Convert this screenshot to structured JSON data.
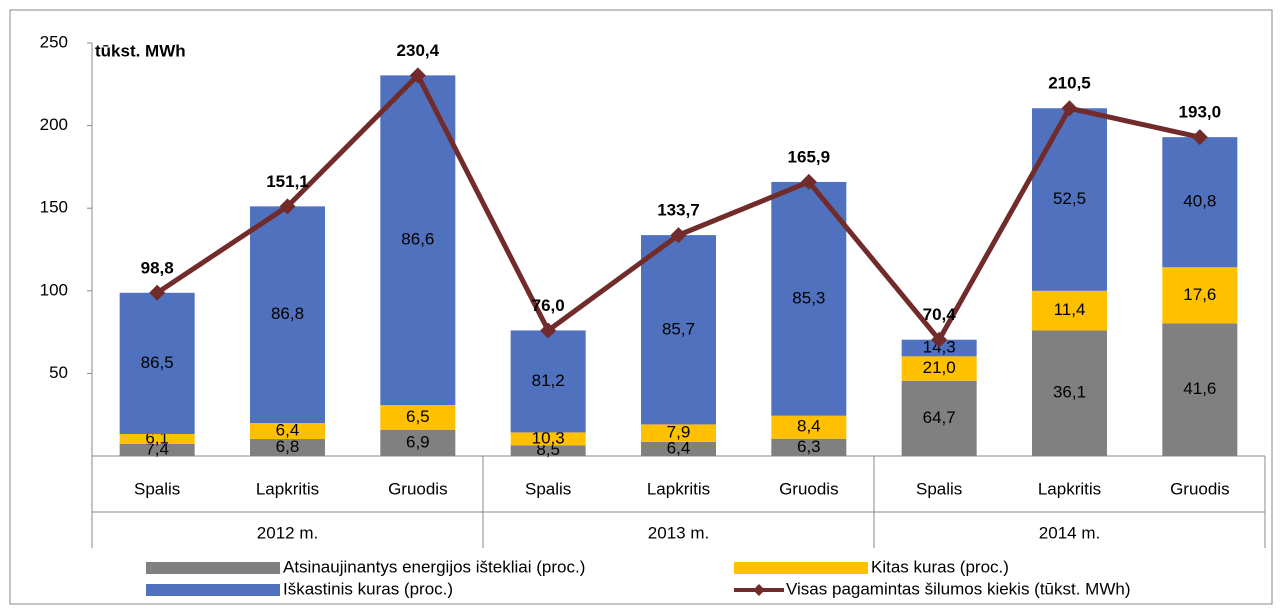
{
  "chart_data": {
    "type": "stacked-bar-line",
    "y_unit_label": "tūkst. MWh",
    "categories": [
      "Spalis",
      "Lapkritis",
      "Gruodis",
      "Spalis",
      "Lapkritis",
      "Gruodis",
      "Spalis",
      "Lapkritis",
      "Gruodis"
    ],
    "groups": [
      "2012 m.",
      "2013 m.",
      "2014 m."
    ],
    "series": [
      {
        "name": "Atsinaujinantys energijos ištekliai (proc.)",
        "color": "#808080",
        "values": [
          7.4,
          6.8,
          6.9,
          8.5,
          6.4,
          6.3,
          64.7,
          36.1,
          41.6
        ],
        "value_labels": [
          "7,4",
          "6,8",
          "6,9",
          "8,5",
          "6,4",
          "6,3",
          "64,7",
          "36,1",
          "41,6"
        ]
      },
      {
        "name": "Kitas kuras (proc.)",
        "color": "#ffc000",
        "values": [
          6.1,
          6.4,
          6.5,
          10.3,
          7.9,
          8.4,
          21.0,
          11.4,
          17.6
        ],
        "value_labels": [
          "6,1",
          "6,4",
          "6,5",
          "10,3",
          "7,9",
          "8,4",
          "21,0",
          "11,4",
          "17,6"
        ]
      },
      {
        "name": "Iškastinis kuras (proc.)",
        "color": "#4f71be",
        "values": [
          86.5,
          86.8,
          86.6,
          81.2,
          85.7,
          85.3,
          14.3,
          52.5,
          40.8
        ],
        "value_labels": [
          "86,5",
          "86,8",
          "86,6",
          "81,2",
          "85,7",
          "85,3",
          "14,3",
          "52,5",
          "40,8"
        ]
      },
      {
        "name": "Visas pagamintas šilumos kiekis (tūkst. MWh)",
        "color": "#722b2b",
        "type": "line",
        "values": [
          98.8,
          151.1,
          230.4,
          76.0,
          133.7,
          165.9,
          70.4,
          210.5,
          193.0
        ],
        "value_labels": [
          "98,8",
          "151,1",
          "230,4",
          "76,0",
          "133,7",
          "165,9",
          "70,4",
          "210,5",
          "193,0"
        ]
      }
    ],
    "ylim": [
      0,
      250
    ],
    "yticks": [
      50,
      100,
      150,
      200,
      250
    ],
    "grid": false
  }
}
